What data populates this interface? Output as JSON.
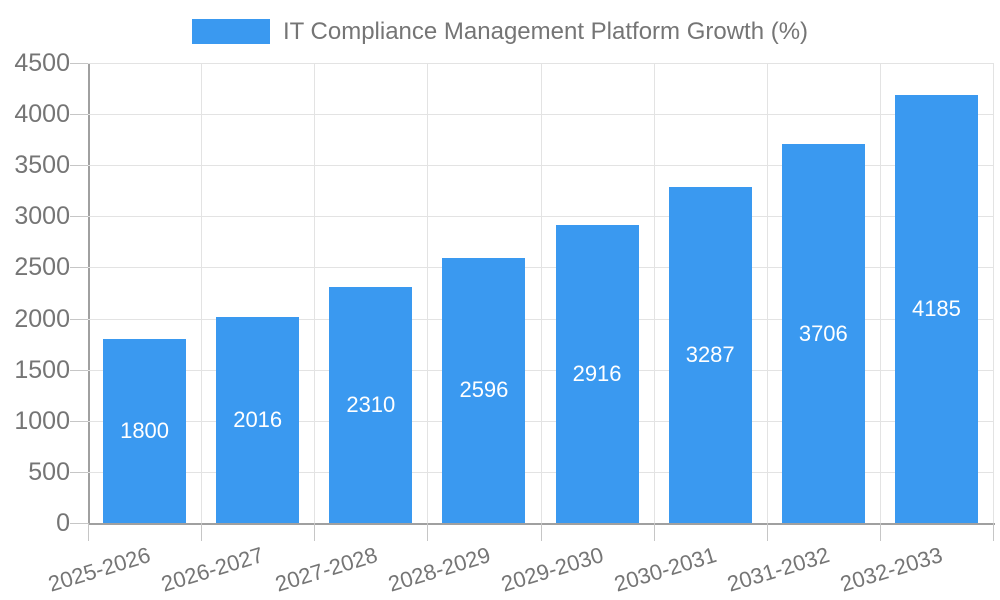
{
  "legend": {
    "label": "IT Compliance Management Platform Growth (%)"
  },
  "colors": {
    "bar": "#3A99F0",
    "grid": "#E3E3E3",
    "axis": "#A0A0A0",
    "tick": "#C6C6C6",
    "axis_label": "#757575",
    "value_label": "#FFFFFF",
    "background": "#FFFFFF"
  },
  "chart_data": {
    "type": "bar",
    "title": "IT Compliance Management Platform Growth (%)",
    "categories": [
      "2025-2026",
      "2026-2027",
      "2027-2028",
      "2028-2029",
      "2029-2030",
      "2030-2031",
      "2031-2032",
      "2032-2033"
    ],
    "values": [
      1800,
      2016,
      2310,
      2596,
      2916,
      3287,
      3706,
      4185
    ],
    "series": [
      {
        "name": "IT Compliance Management Platform Growth (%)",
        "values": [
          1800,
          2016,
          2310,
          2596,
          2916,
          3287,
          3706,
          4185
        ]
      }
    ],
    "xlabel": "",
    "ylabel": "",
    "ylim": [
      0,
      4500
    ],
    "y_ticks": [
      0,
      500,
      1000,
      1500,
      2000,
      2500,
      3000,
      3500,
      4000,
      4500
    ],
    "grid": true,
    "legend_position": "top-center",
    "value_labels": "inside-center",
    "x_label_rotation_deg": -17,
    "bar_color": "#3A99F0"
  }
}
